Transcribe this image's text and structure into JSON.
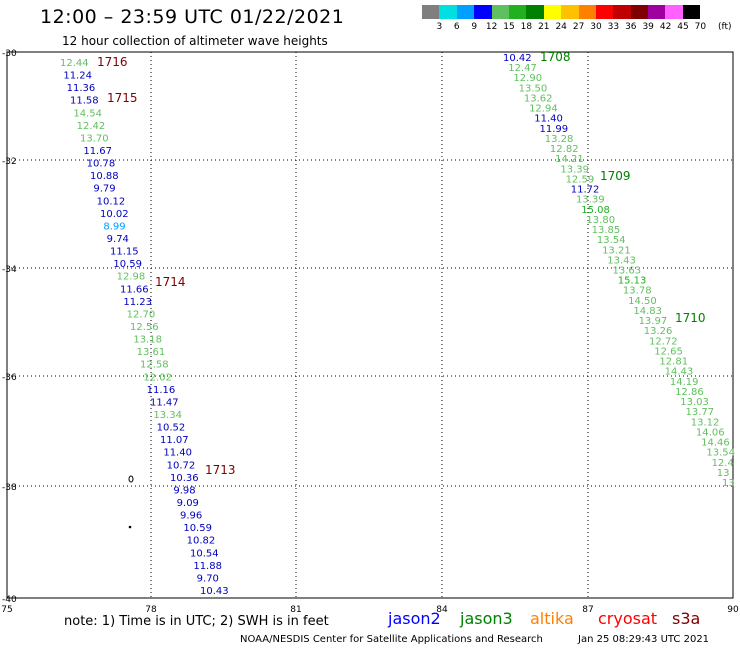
{
  "header": {
    "title": "12:00 – 23:59 UTC 01/22/2021",
    "subtitle": "12 hour collection of altimeter wave heights"
  },
  "colorbar": {
    "colors": [
      "#7f7f7f",
      "#00e0e0",
      "#00a0ff",
      "#0000ff",
      "#60c060",
      "#20b020",
      "#008000",
      "#ffff00",
      "#ffc000",
      "#ff8000",
      "#ff0000",
      "#c00000",
      "#800000",
      "#a000a0",
      "#ff60ff",
      "#000000"
    ],
    "labels": [
      "3",
      "6",
      "9",
      "12",
      "15",
      "18",
      "21",
      "24",
      "27",
      "30",
      "33",
      "36",
      "39",
      "42",
      "45",
      "70"
    ],
    "unit": "(ft)"
  },
  "map": {
    "lat_labels": [
      "-30",
      "-32",
      "-34",
      "-36",
      "-38",
      "-40"
    ],
    "lon_labels": [
      "75",
      "78",
      "81",
      "84",
      "87",
      "90"
    ],
    "passes": [
      {
        "id": "1716",
        "color": "#800000"
      },
      {
        "id": "1715",
        "color": "#800000"
      },
      {
        "id": "1714",
        "color": "#800000"
      },
      {
        "id": "1713",
        "color": "#800000"
      },
      {
        "id": "1708",
        "color": "#008000"
      },
      {
        "id": "1709",
        "color": "#008000"
      },
      {
        "id": "1710",
        "color": "#008000"
      }
    ],
    "left_track": [
      {
        "v": "12.44",
        "c": "#60c060"
      },
      {
        "v": "11.24",
        "c": "#0000c0"
      },
      {
        "v": "11.36",
        "c": "#0000c0"
      },
      {
        "v": "11.58",
        "c": "#0000c0"
      },
      {
        "v": "14.54",
        "c": "#60c060"
      },
      {
        "v": "12.42",
        "c": "#60c060"
      },
      {
        "v": "13.70",
        "c": "#60c060"
      },
      {
        "v": "11.67",
        "c": "#0000c0"
      },
      {
        "v": "10.78",
        "c": "#0000c0"
      },
      {
        "v": "10.88",
        "c": "#0000c0"
      },
      {
        "v": "9.79",
        "c": "#0000c0"
      },
      {
        "v": "10.12",
        "c": "#0000c0"
      },
      {
        "v": "10.02",
        "c": "#0000c0"
      },
      {
        "v": "8.99",
        "c": "#00a0ff"
      },
      {
        "v": "9.74",
        "c": "#0000c0"
      },
      {
        "v": "11.15",
        "c": "#0000c0"
      },
      {
        "v": "10.59",
        "c": "#0000c0"
      },
      {
        "v": "12.98",
        "c": "#60c060"
      },
      {
        "v": "11.66",
        "c": "#0000c0"
      },
      {
        "v": "11.23",
        "c": "#0000c0"
      },
      {
        "v": "12.70",
        "c": "#60c060"
      },
      {
        "v": "12.56",
        "c": "#60c060"
      },
      {
        "v": "13.18",
        "c": "#60c060"
      },
      {
        "v": "13.61",
        "c": "#60c060"
      },
      {
        "v": "12.58",
        "c": "#60c060"
      },
      {
        "v": "12.02",
        "c": "#60c060"
      },
      {
        "v": "11.16",
        "c": "#0000c0"
      },
      {
        "v": "11.47",
        "c": "#0000c0"
      },
      {
        "v": "13.34",
        "c": "#60c060"
      },
      {
        "v": "10.52",
        "c": "#0000c0"
      },
      {
        "v": "11.07",
        "c": "#0000c0"
      },
      {
        "v": "11.40",
        "c": "#0000c0"
      },
      {
        "v": "10.72",
        "c": "#0000c0"
      },
      {
        "v": "10.36",
        "c": "#0000c0"
      },
      {
        "v": "9.98",
        "c": "#0000c0"
      },
      {
        "v": "9.09",
        "c": "#0000c0"
      },
      {
        "v": "9.96",
        "c": "#0000c0"
      },
      {
        "v": "10.59",
        "c": "#0000c0"
      },
      {
        "v": "10.82",
        "c": "#0000c0"
      },
      {
        "v": "10.54",
        "c": "#0000c0"
      },
      {
        "v": "11.88",
        "c": "#0000c0"
      },
      {
        "v": "9.70",
        "c": "#0000c0"
      },
      {
        "v": "10.43",
        "c": "#0000c0"
      }
    ],
    "right_track": [
      {
        "v": "10.42",
        "c": "#0000c0"
      },
      {
        "v": "12.47",
        "c": "#60c060"
      },
      {
        "v": "12.90",
        "c": "#60c060"
      },
      {
        "v": "13.50",
        "c": "#60c060"
      },
      {
        "v": "13.62",
        "c": "#60c060"
      },
      {
        "v": "12.94",
        "c": "#60c060"
      },
      {
        "v": "11.40",
        "c": "#0000c0"
      },
      {
        "v": "11.99",
        "c": "#0000c0"
      },
      {
        "v": "13.28",
        "c": "#60c060"
      },
      {
        "v": "12.82",
        "c": "#60c060"
      },
      {
        "v": "14.21",
        "c": "#60c060"
      },
      {
        "v": "13.39",
        "c": "#60c060"
      },
      {
        "v": "12.59",
        "c": "#60c060"
      },
      {
        "v": "11.72",
        "c": "#0000c0"
      },
      {
        "v": "13.39",
        "c": "#60c060"
      },
      {
        "v": "15.08",
        "c": "#20b020"
      },
      {
        "v": "13.80",
        "c": "#60c060"
      },
      {
        "v": "13.85",
        "c": "#60c060"
      },
      {
        "v": "13.54",
        "c": "#60c060"
      },
      {
        "v": "13.21",
        "c": "#60c060"
      },
      {
        "v": "13.43",
        "c": "#60c060"
      },
      {
        "v": "13.63",
        "c": "#60c060"
      },
      {
        "v": "15.13",
        "c": "#20b020"
      },
      {
        "v": "13.78",
        "c": "#60c060"
      },
      {
        "v": "14.50",
        "c": "#60c060"
      },
      {
        "v": "14.83",
        "c": "#60c060"
      },
      {
        "v": "13.97",
        "c": "#60c060"
      },
      {
        "v": "13.26",
        "c": "#60c060"
      },
      {
        "v": "12.72",
        "c": "#60c060"
      },
      {
        "v": "12.65",
        "c": "#60c060"
      },
      {
        "v": "12.81",
        "c": "#60c060"
      },
      {
        "v": "14.43",
        "c": "#60c060"
      },
      {
        "v": "14.19",
        "c": "#60c060"
      },
      {
        "v": "12.86",
        "c": "#60c060"
      },
      {
        "v": "13.03",
        "c": "#60c060"
      },
      {
        "v": "13.77",
        "c": "#60c060"
      },
      {
        "v": "13.12",
        "c": "#60c060"
      },
      {
        "v": "14.06",
        "c": "#60c060"
      },
      {
        "v": "14.46",
        "c": "#60c060"
      },
      {
        "v": "13.54",
        "c": "#60c060"
      },
      {
        "v": "12.4",
        "c": "#60c060"
      },
      {
        "v": "13",
        "c": "#60c060"
      },
      {
        "v": "13",
        "c": "#60c060"
      }
    ]
  },
  "footer": {
    "note": "note:  1) Time is in UTC;  2) SWH is in feet",
    "satellites": [
      {
        "name": "jason2",
        "color": "#0000ff"
      },
      {
        "name": "jason3",
        "color": "#008000"
      },
      {
        "name": "altika",
        "color": "#ff8000"
      },
      {
        "name": "cryosat",
        "color": "#ff0000"
      },
      {
        "name": "s3a",
        "color": "#800000"
      }
    ],
    "credit": "NOAA/NESDIS Center for Satellite Applications and Research",
    "timestamp": "Jan 25 08:29:43 UTC 2021"
  }
}
